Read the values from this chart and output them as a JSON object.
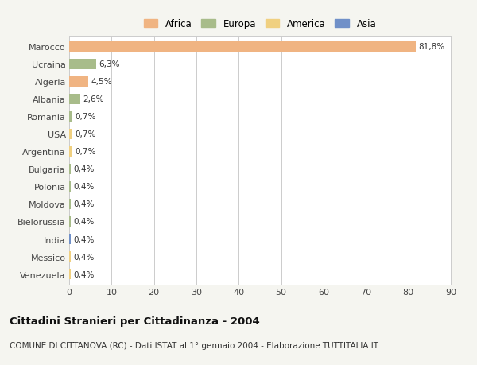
{
  "countries": [
    "Marocco",
    "Ucraina",
    "Algeria",
    "Albania",
    "Romania",
    "USA",
    "Argentina",
    "Bulgaria",
    "Polonia",
    "Moldova",
    "Bielorussia",
    "India",
    "Messico",
    "Venezuela"
  ],
  "values": [
    81.8,
    6.3,
    4.5,
    2.6,
    0.7,
    0.7,
    0.7,
    0.4,
    0.4,
    0.4,
    0.4,
    0.4,
    0.4,
    0.4
  ],
  "labels": [
    "81,8%",
    "6,3%",
    "4,5%",
    "2,6%",
    "0,7%",
    "0,7%",
    "0,7%",
    "0,4%",
    "0,4%",
    "0,4%",
    "0,4%",
    "0,4%",
    "0,4%",
    "0,4%"
  ],
  "continents": [
    "Africa",
    "Europa",
    "Africa",
    "Europa",
    "Europa",
    "America",
    "America",
    "Europa",
    "Europa",
    "Europa",
    "Europa",
    "Asia",
    "America",
    "America"
  ],
  "continent_colors": {
    "Africa": "#F0B482",
    "Europa": "#A8BC8A",
    "America": "#F0D080",
    "Asia": "#7090C8"
  },
  "title": "Cittadini Stranieri per Cittadinanza - 2004",
  "subtitle": "COMUNE DI CITTANOVA (RC) - Dati ISTAT al 1° gennaio 2004 - Elaborazione TUTTITALIA.IT",
  "legend_labels": [
    "Africa",
    "Europa",
    "America",
    "Asia"
  ],
  "legend_colors": [
    "#F0B482",
    "#A8BC8A",
    "#F0D080",
    "#7090C8"
  ],
  "xlim": [
    0,
    90
  ],
  "xticks": [
    0,
    10,
    20,
    30,
    40,
    50,
    60,
    70,
    80,
    90
  ],
  "background_color": "#F5F5F0",
  "plot_bg_color": "#FFFFFF",
  "grid_color": "#CCCCCC",
  "bar_height": 0.6
}
